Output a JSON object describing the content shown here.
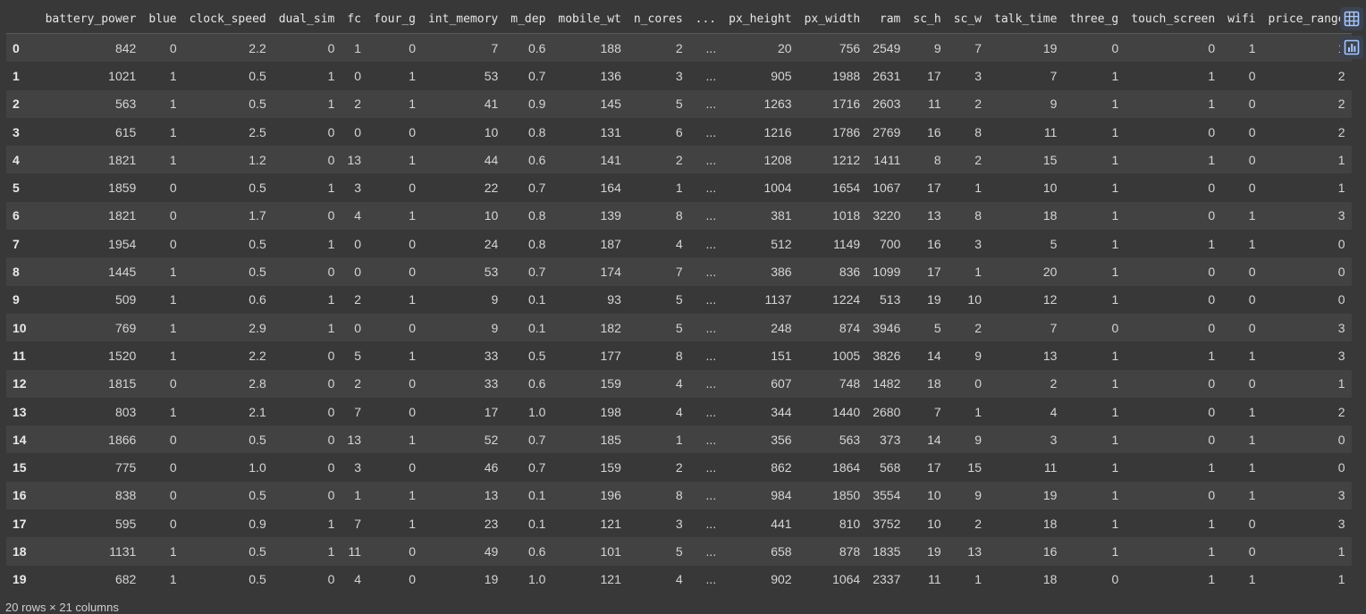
{
  "table": {
    "index_header": "",
    "columns": [
      "battery_power",
      "blue",
      "clock_speed",
      "dual_sim",
      "fc",
      "four_g",
      "int_memory",
      "m_dep",
      "mobile_wt",
      "n_cores",
      "...",
      "px_height",
      "px_width",
      "ram",
      "sc_h",
      "sc_w",
      "talk_time",
      "three_g",
      "touch_screen",
      "wifi",
      "price_range"
    ],
    "rows": [
      {
        "index": "0",
        "cells": [
          "842",
          "0",
          "2.2",
          "0",
          "1",
          "0",
          "7",
          "0.6",
          "188",
          "2",
          "...",
          "20",
          "756",
          "2549",
          "9",
          "7",
          "19",
          "0",
          "0",
          "1",
          "1"
        ]
      },
      {
        "index": "1",
        "cells": [
          "1021",
          "1",
          "0.5",
          "1",
          "0",
          "1",
          "53",
          "0.7",
          "136",
          "3",
          "...",
          "905",
          "1988",
          "2631",
          "17",
          "3",
          "7",
          "1",
          "1",
          "0",
          "2"
        ]
      },
      {
        "index": "2",
        "cells": [
          "563",
          "1",
          "0.5",
          "1",
          "2",
          "1",
          "41",
          "0.9",
          "145",
          "5",
          "...",
          "1263",
          "1716",
          "2603",
          "11",
          "2",
          "9",
          "1",
          "1",
          "0",
          "2"
        ]
      },
      {
        "index": "3",
        "cells": [
          "615",
          "1",
          "2.5",
          "0",
          "0",
          "0",
          "10",
          "0.8",
          "131",
          "6",
          "...",
          "1216",
          "1786",
          "2769",
          "16",
          "8",
          "11",
          "1",
          "0",
          "0",
          "2"
        ]
      },
      {
        "index": "4",
        "cells": [
          "1821",
          "1",
          "1.2",
          "0",
          "13",
          "1",
          "44",
          "0.6",
          "141",
          "2",
          "...",
          "1208",
          "1212",
          "1411",
          "8",
          "2",
          "15",
          "1",
          "1",
          "0",
          "1"
        ]
      },
      {
        "index": "5",
        "cells": [
          "1859",
          "0",
          "0.5",
          "1",
          "3",
          "0",
          "22",
          "0.7",
          "164",
          "1",
          "...",
          "1004",
          "1654",
          "1067",
          "17",
          "1",
          "10",
          "1",
          "0",
          "0",
          "1"
        ]
      },
      {
        "index": "6",
        "cells": [
          "1821",
          "0",
          "1.7",
          "0",
          "4",
          "1",
          "10",
          "0.8",
          "139",
          "8",
          "...",
          "381",
          "1018",
          "3220",
          "13",
          "8",
          "18",
          "1",
          "0",
          "1",
          "3"
        ]
      },
      {
        "index": "7",
        "cells": [
          "1954",
          "0",
          "0.5",
          "1",
          "0",
          "0",
          "24",
          "0.8",
          "187",
          "4",
          "...",
          "512",
          "1149",
          "700",
          "16",
          "3",
          "5",
          "1",
          "1",
          "1",
          "0"
        ]
      },
      {
        "index": "8",
        "cells": [
          "1445",
          "1",
          "0.5",
          "0",
          "0",
          "0",
          "53",
          "0.7",
          "174",
          "7",
          "...",
          "386",
          "836",
          "1099",
          "17",
          "1",
          "20",
          "1",
          "0",
          "0",
          "0"
        ]
      },
      {
        "index": "9",
        "cells": [
          "509",
          "1",
          "0.6",
          "1",
          "2",
          "1",
          "9",
          "0.1",
          "93",
          "5",
          "...",
          "1137",
          "1224",
          "513",
          "19",
          "10",
          "12",
          "1",
          "0",
          "0",
          "0"
        ]
      },
      {
        "index": "10",
        "cells": [
          "769",
          "1",
          "2.9",
          "1",
          "0",
          "0",
          "9",
          "0.1",
          "182",
          "5",
          "...",
          "248",
          "874",
          "3946",
          "5",
          "2",
          "7",
          "0",
          "0",
          "0",
          "3"
        ]
      },
      {
        "index": "11",
        "cells": [
          "1520",
          "1",
          "2.2",
          "0",
          "5",
          "1",
          "33",
          "0.5",
          "177",
          "8",
          "...",
          "151",
          "1005",
          "3826",
          "14",
          "9",
          "13",
          "1",
          "1",
          "1",
          "3"
        ]
      },
      {
        "index": "12",
        "cells": [
          "1815",
          "0",
          "2.8",
          "0",
          "2",
          "0",
          "33",
          "0.6",
          "159",
          "4",
          "...",
          "607",
          "748",
          "1482",
          "18",
          "0",
          "2",
          "1",
          "0",
          "0",
          "1"
        ]
      },
      {
        "index": "13",
        "cells": [
          "803",
          "1",
          "2.1",
          "0",
          "7",
          "0",
          "17",
          "1.0",
          "198",
          "4",
          "...",
          "344",
          "1440",
          "2680",
          "7",
          "1",
          "4",
          "1",
          "0",
          "1",
          "2"
        ]
      },
      {
        "index": "14",
        "cells": [
          "1866",
          "0",
          "0.5",
          "0",
          "13",
          "1",
          "52",
          "0.7",
          "185",
          "1",
          "...",
          "356",
          "563",
          "373",
          "14",
          "9",
          "3",
          "1",
          "0",
          "1",
          "0"
        ]
      },
      {
        "index": "15",
        "cells": [
          "775",
          "0",
          "1.0",
          "0",
          "3",
          "0",
          "46",
          "0.7",
          "159",
          "2",
          "...",
          "862",
          "1864",
          "568",
          "17",
          "15",
          "11",
          "1",
          "1",
          "1",
          "0"
        ]
      },
      {
        "index": "16",
        "cells": [
          "838",
          "0",
          "0.5",
          "0",
          "1",
          "1",
          "13",
          "0.1",
          "196",
          "8",
          "...",
          "984",
          "1850",
          "3554",
          "10",
          "9",
          "19",
          "1",
          "0",
          "1",
          "3"
        ]
      },
      {
        "index": "17",
        "cells": [
          "595",
          "0",
          "0.9",
          "1",
          "7",
          "1",
          "23",
          "0.1",
          "121",
          "3",
          "...",
          "441",
          "810",
          "3752",
          "10",
          "2",
          "18",
          "1",
          "1",
          "0",
          "3"
        ]
      },
      {
        "index": "18",
        "cells": [
          "1131",
          "1",
          "0.5",
          "1",
          "11",
          "0",
          "49",
          "0.6",
          "101",
          "5",
          "...",
          "658",
          "878",
          "1835",
          "19",
          "13",
          "16",
          "1",
          "1",
          "0",
          "1"
        ]
      },
      {
        "index": "19",
        "cells": [
          "682",
          "1",
          "0.5",
          "0",
          "4",
          "0",
          "19",
          "1.0",
          "121",
          "4",
          "...",
          "902",
          "1064",
          "2337",
          "11",
          "1",
          "18",
          "0",
          "1",
          "1",
          "1"
        ]
      }
    ]
  },
  "footer": {
    "shape_text": "20 rows × 21 columns"
  },
  "side_toolbar": {
    "buttons": [
      {
        "icon": "table-icon"
      },
      {
        "icon": "chart-icon"
      }
    ]
  },
  "colors": {
    "background": "#383838",
    "row_alt": "#424242",
    "tool_button": "#3b4250",
    "tool_icon": "#a8c7fa"
  }
}
